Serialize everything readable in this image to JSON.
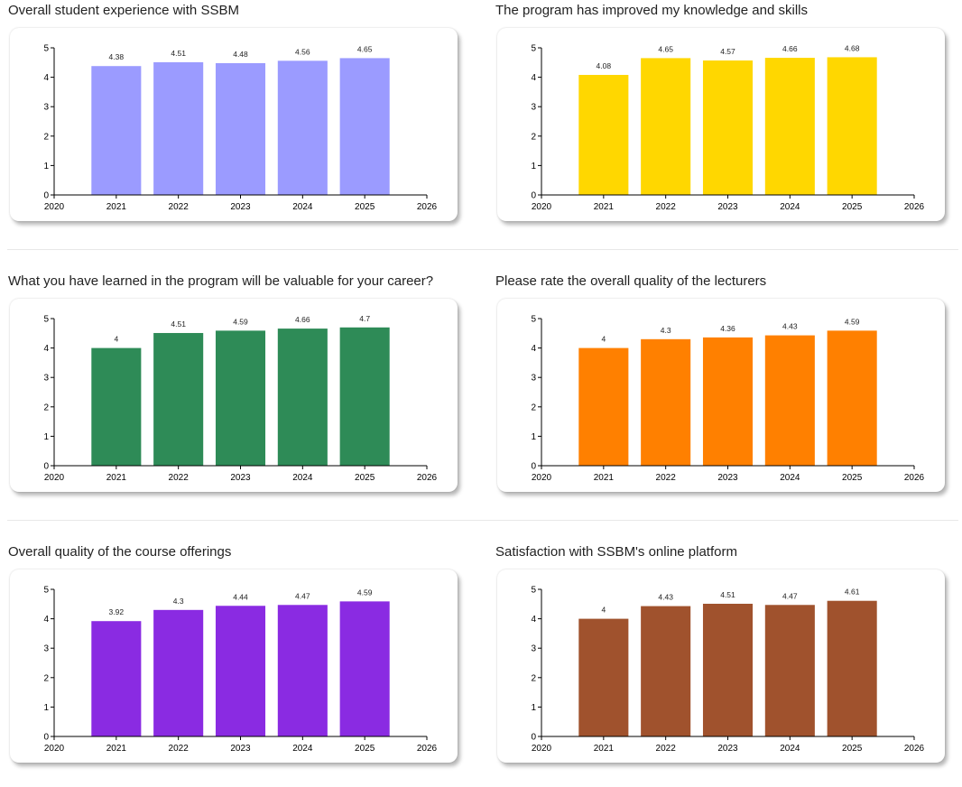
{
  "chart_data": [
    {
      "type": "bar",
      "title": "Overall student experience with SSBM",
      "color": "#9b9bff",
      "categories": [
        "2021",
        "2022",
        "2023",
        "2024",
        "2025"
      ],
      "values": [
        4.38,
        4.51,
        4.48,
        4.56,
        4.65
      ],
      "value_labels": [
        "4.38",
        "4.51",
        "4.48",
        "4.56",
        "4.65"
      ],
      "x_ticks": [
        "2020",
        "2021",
        "2022",
        "2023",
        "2024",
        "2025",
        "2026"
      ],
      "y_ticks": [
        "0",
        "1",
        "2",
        "3",
        "4",
        "5"
      ],
      "xlim": [
        2020,
        2026
      ],
      "ylim": [
        0,
        5
      ],
      "xlabel": "",
      "ylabel": "",
      "grid": false
    },
    {
      "type": "bar",
      "title": "The program has improved my knowledge and skills",
      "color": "#ffd700",
      "categories": [
        "2021",
        "2022",
        "2023",
        "2024",
        "2025"
      ],
      "values": [
        4.08,
        4.65,
        4.57,
        4.66,
        4.68
      ],
      "value_labels": [
        "4.08",
        "4.65",
        "4.57",
        "4.66",
        "4.68"
      ],
      "x_ticks": [
        "2020",
        "2021",
        "2022",
        "2023",
        "2024",
        "2025",
        "2026"
      ],
      "y_ticks": [
        "0",
        "1",
        "2",
        "3",
        "4",
        "5"
      ],
      "xlim": [
        2020,
        2026
      ],
      "ylim": [
        0,
        5
      ],
      "xlabel": "",
      "ylabel": "",
      "grid": false
    },
    {
      "type": "bar",
      "title": "What you have learned in the program will be valuable for your career?",
      "color": "#2e8b57",
      "categories": [
        "2021",
        "2022",
        "2023",
        "2024",
        "2025"
      ],
      "values": [
        4,
        4.51,
        4.59,
        4.66,
        4.7
      ],
      "value_labels": [
        "4",
        "4.51",
        "4.59",
        "4.66",
        "4.7"
      ],
      "x_ticks": [
        "2020",
        "2021",
        "2022",
        "2023",
        "2024",
        "2025",
        "2026"
      ],
      "y_ticks": [
        "0",
        "1",
        "2",
        "3",
        "4",
        "5"
      ],
      "xlim": [
        2020,
        2026
      ],
      "ylim": [
        0,
        5
      ],
      "xlabel": "",
      "ylabel": "",
      "grid": false
    },
    {
      "type": "bar",
      "title": "Please rate the overall quality of the lecturers",
      "color": "#ff8000",
      "categories": [
        "2021",
        "2022",
        "2023",
        "2024",
        "2025"
      ],
      "values": [
        4,
        4.3,
        4.36,
        4.43,
        4.59
      ],
      "value_labels": [
        "4",
        "4.3",
        "4.36",
        "4.43",
        "4.59"
      ],
      "x_ticks": [
        "2020",
        "2021",
        "2022",
        "2023",
        "2024",
        "2025",
        "2026"
      ],
      "y_ticks": [
        "0",
        "1",
        "2",
        "3",
        "4",
        "5"
      ],
      "xlim": [
        2020,
        2026
      ],
      "ylim": [
        0,
        5
      ],
      "xlabel": "",
      "ylabel": "",
      "grid": false
    },
    {
      "type": "bar",
      "title": "Overall quality of the course offerings",
      "color": "#8a2be2",
      "categories": [
        "2021",
        "2022",
        "2023",
        "2024",
        "2025"
      ],
      "values": [
        3.92,
        4.3,
        4.44,
        4.47,
        4.59
      ],
      "value_labels": [
        "3.92",
        "4.3",
        "4.44",
        "4.47",
        "4.59"
      ],
      "x_ticks": [
        "2020",
        "2021",
        "2022",
        "2023",
        "2024",
        "2025",
        "2026"
      ],
      "y_ticks": [
        "0",
        "1",
        "2",
        "3",
        "4",
        "5"
      ],
      "xlim": [
        2020,
        2026
      ],
      "ylim": [
        0,
        5
      ],
      "xlabel": "",
      "ylabel": "",
      "grid": false
    },
    {
      "type": "bar",
      "title": "Satisfaction with SSBM's online platform",
      "color": "#a0522d",
      "categories": [
        "2021",
        "2022",
        "2023",
        "2024",
        "2025"
      ],
      "values": [
        4,
        4.43,
        4.51,
        4.47,
        4.61
      ],
      "value_labels": [
        "4",
        "4.43",
        "4.51",
        "4.47",
        "4.61"
      ],
      "x_ticks": [
        "2020",
        "2021",
        "2022",
        "2023",
        "2024",
        "2025",
        "2026"
      ],
      "y_ticks": [
        "0",
        "1",
        "2",
        "3",
        "4",
        "5"
      ],
      "xlim": [
        2020,
        2026
      ],
      "ylim": [
        0,
        5
      ],
      "xlabel": "",
      "ylabel": "",
      "grid": false
    }
  ]
}
